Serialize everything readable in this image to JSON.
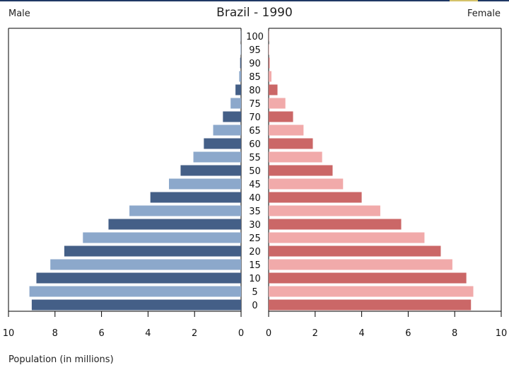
{
  "title": "Brazil - 1990",
  "labels": {
    "male": "Male",
    "female": "Female",
    "xlabel": "Population (in millions)"
  },
  "colors": {
    "male_dark": "#445f87",
    "male_light": "#8ca8cb",
    "female_dark": "#cb6767",
    "female_light": "#f1aaaa",
    "axis": "#000000",
    "accent_line": "#1f3864"
  },
  "chart_data": {
    "type": "bar",
    "orientation": "horizontal-back-to-back",
    "title": "Brazil - 1990",
    "xlabel": "Population (in millions)",
    "categories": [
      "0",
      "5",
      "10",
      "15",
      "20",
      "25",
      "30",
      "35",
      "40",
      "45",
      "50",
      "55",
      "60",
      "65",
      "70",
      "75",
      "80",
      "85",
      "90",
      "95",
      "100"
    ],
    "series": [
      {
        "name": "Male",
        "values": [
          9.0,
          9.1,
          8.8,
          8.2,
          7.6,
          6.8,
          5.7,
          4.8,
          3.9,
          3.1,
          2.6,
          2.05,
          1.6,
          1.2,
          0.78,
          0.45,
          0.24,
          0.08,
          0.04,
          0.02,
          0.01
        ]
      },
      {
        "name": "Female",
        "values": [
          8.7,
          8.8,
          8.5,
          7.9,
          7.4,
          6.7,
          5.7,
          4.8,
          4.0,
          3.2,
          2.75,
          2.3,
          1.9,
          1.5,
          1.05,
          0.72,
          0.38,
          0.12,
          0.04,
          0.02,
          0.01
        ]
      }
    ],
    "xlim_left": [
      10,
      0
    ],
    "xlim_right": [
      0,
      10
    ],
    "xticks": [
      0,
      2,
      4,
      6,
      8,
      10
    ],
    "grid": false,
    "legend": "none"
  }
}
